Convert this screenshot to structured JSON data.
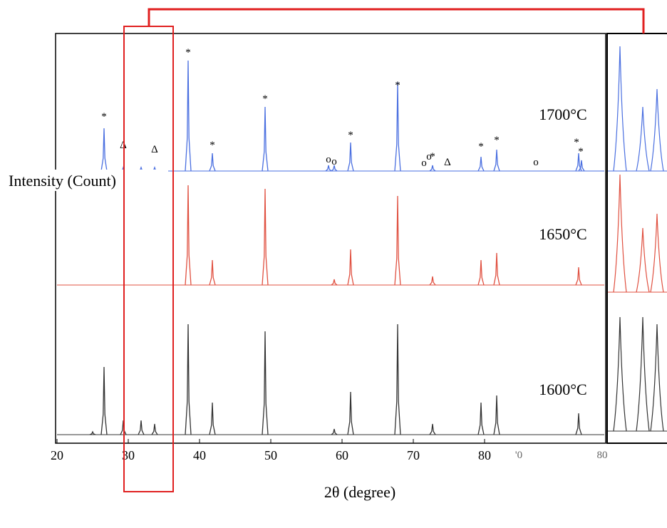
{
  "chart_data": {
    "type": "stem",
    "xlabel": "2θ (degree)",
    "ylabel": "Intensity (Count)",
    "xlim": [
      19.8,
      97
    ],
    "xticks": [
      20,
      30,
      40,
      50,
      60,
      70,
      80
    ],
    "ylim": [
      0,
      160
    ],
    "extra_tick_labels": [
      "'0",
      "80"
    ],
    "series": [
      {
        "name": "1700°C",
        "color": "#4a6fe0",
        "x": [
          26.6,
          29.3,
          31.8,
          33.7,
          38.4,
          41.8,
          49.2,
          58.1,
          58.9,
          61.2,
          67.8,
          72.7,
          79.5,
          81.7,
          93.2,
          93.6
        ],
        "values": [
          60,
          5,
          5,
          5,
          155,
          25,
          90,
          8,
          8,
          40,
          125,
          8,
          20,
          30,
          25,
          15
        ]
      },
      {
        "name": "1650°C",
        "color": "#e05040",
        "x": [
          38.4,
          41.8,
          49.2,
          58.9,
          61.2,
          67.8,
          72.7,
          79.5,
          81.7,
          93.2
        ],
        "values": [
          140,
          35,
          135,
          8,
          50,
          125,
          12,
          35,
          45,
          25
        ]
      },
      {
        "name": "1600°C",
        "color": "#333333",
        "x": [
          25,
          26.6,
          29.3,
          31.8,
          33.7,
          38.4,
          41.8,
          49.2,
          58.9,
          61.2,
          67.8,
          72.7,
          79.5,
          81.7,
          93.2
        ],
        "values": [
          4,
          95,
          20,
          20,
          15,
          155,
          45,
          145,
          8,
          60,
          155,
          15,
          45,
          55,
          30
        ]
      }
    ],
    "inset": {
      "series": [
        {
          "values": [
            175,
            90,
            115
          ]
        },
        {
          "values": [
            165,
            90,
            110
          ]
        },
        {
          "values": [
            160,
            160,
            150
          ]
        }
      ]
    },
    "markers": [
      {
        "text": "*",
        "x": 26.6
      },
      {
        "text": "Δ",
        "x": 29.3
      },
      {
        "text": "Δ",
        "x": 33.7
      },
      {
        "text": "*",
        "x": 38.4
      },
      {
        "text": "*",
        "x": 41.8
      },
      {
        "text": "*",
        "x": 49.2
      },
      {
        "text": "o",
        "x": 58.1
      },
      {
        "text": "o",
        "x": 58.9
      },
      {
        "text": "*",
        "x": 61.2
      },
      {
        "text": "*",
        "x": 67.8
      },
      {
        "text": "o",
        "x": 71.5
      },
      {
        "text": "o",
        "x": 72.2
      },
      {
        "text": "*",
        "x": 72.7
      },
      {
        "text": "Δ",
        "x": 74.8
      },
      {
        "text": "*",
        "x": 79.5
      },
      {
        "text": "*",
        "x": 81.7
      },
      {
        "text": "o",
        "x": 87.2
      },
      {
        "text": "*",
        "x": 92.9
      },
      {
        "text": "*",
        "x": 93.5
      }
    ]
  }
}
